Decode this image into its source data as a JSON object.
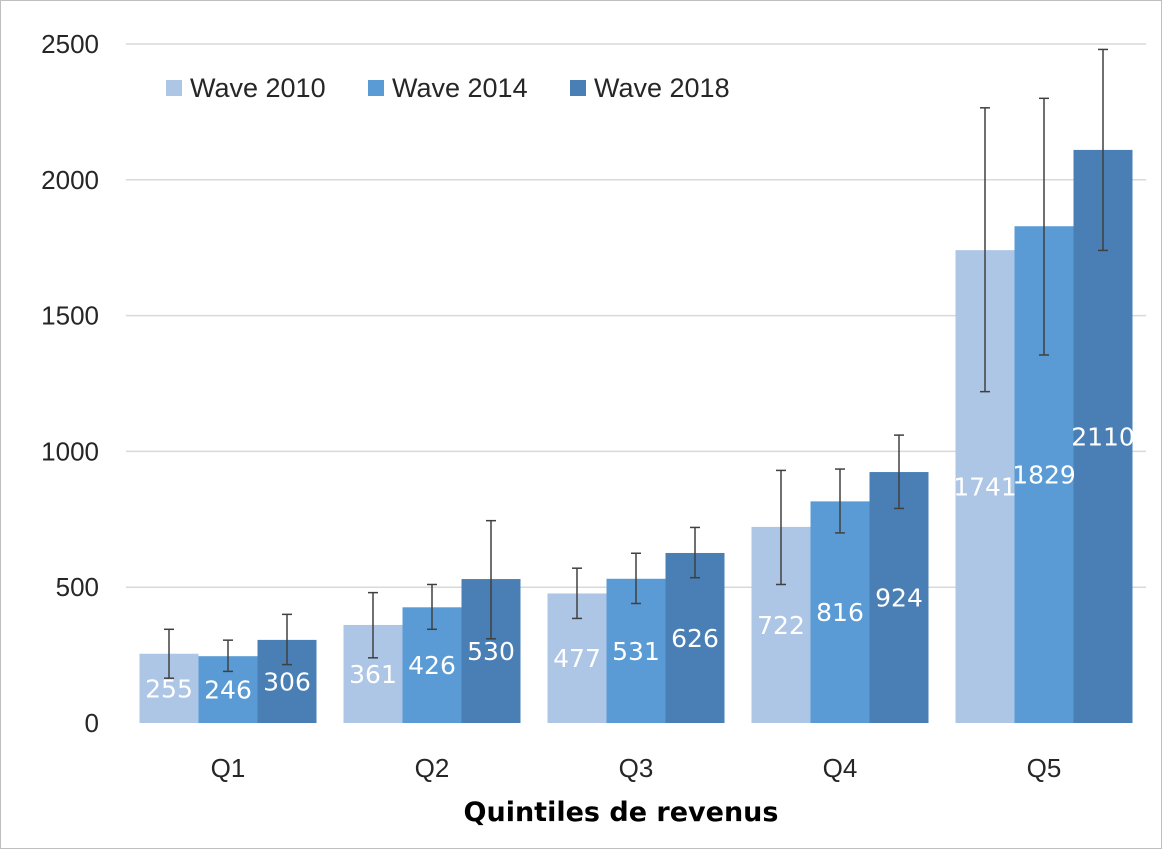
{
  "chart_data": {
    "type": "bar",
    "title": "",
    "xlabel": "Quintiles de revenus",
    "ylabel": "",
    "categories": [
      "Q1",
      "Q2",
      "Q3",
      "Q4",
      "Q5"
    ],
    "ylim": [
      0,
      2500
    ],
    "yticks": [
      0,
      500,
      1000,
      1500,
      2000,
      2500
    ],
    "grid": true,
    "legend_position": "top-left",
    "series": [
      {
        "name": "Wave 2010",
        "color": "#adc6e5",
        "values": [
          255,
          361,
          477,
          722,
          1741
        ],
        "error_low": [
          165,
          240,
          385,
          510,
          1220
        ],
        "error_high": [
          345,
          480,
          570,
          930,
          2265
        ]
      },
      {
        "name": "Wave 2014",
        "color": "#5b9bd5",
        "values": [
          246,
          426,
          531,
          816,
          1829
        ],
        "error_low": [
          190,
          345,
          440,
          700,
          1355
        ],
        "error_high": [
          305,
          510,
          625,
          935,
          2300
        ]
      },
      {
        "name": "Wave 2018",
        "color": "#4a7fb5",
        "values": [
          306,
          530,
          626,
          924,
          2110
        ],
        "error_low": [
          215,
          310,
          535,
          790,
          1740
        ],
        "error_high": [
          400,
          745,
          720,
          1060,
          2480
        ]
      }
    ]
  }
}
